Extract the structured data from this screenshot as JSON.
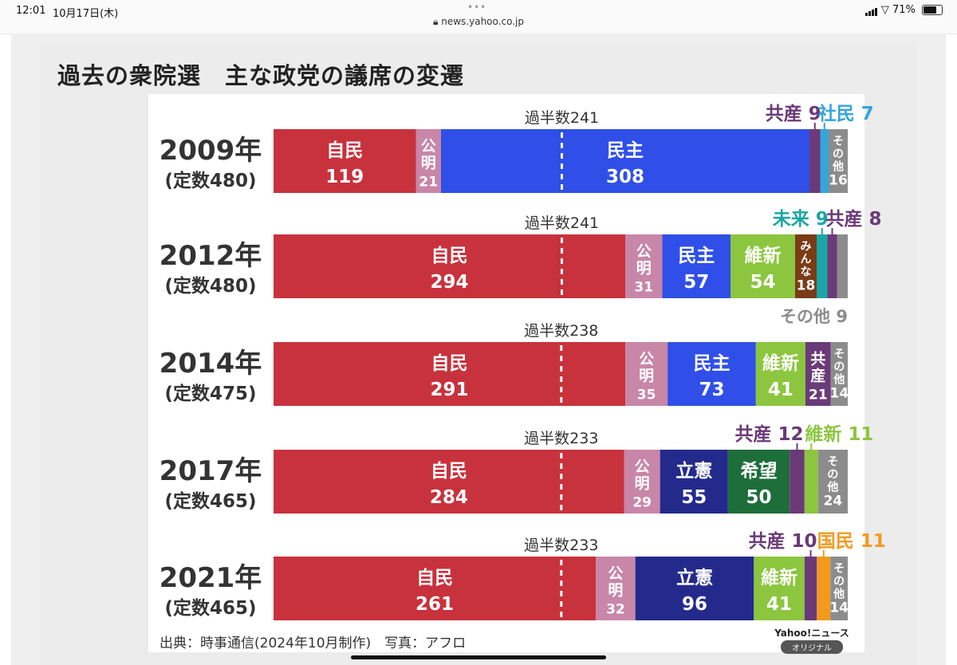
{
  "status_bar": {
    "time": "12:01",
    "date": "10月17日(木)",
    "url": "news.yahoo.co.jp",
    "battery": "71%"
  },
  "article": {
    "headline": "過去の衆院選　主な政党の議席の変遷",
    "source": "出典：時事通信(2024年10月制作)　写真：アフロ",
    "brand": "Yahoo!ニュース",
    "brand_sub": "オリジナル"
  },
  "chart_data": {
    "type": "bar",
    "title": "",
    "majority_label_prefix": "過半数",
    "rows": [
      {
        "year": "2009年",
        "quota": "(定数480)",
        "total": 480,
        "majority": 241,
        "segments": [
          {
            "party": "自民",
            "seats": 119,
            "color": "#c8323c",
            "text": "#ffffff",
            "label": "inside"
          },
          {
            "party": "公明",
            "seats": 21,
            "color": "#c886a8",
            "text": "#ffffff",
            "label": "vertical"
          },
          {
            "party": "民主",
            "seats": 308,
            "color": "#2f4fe8",
            "text": "#ffffff",
            "label": "inside"
          },
          {
            "party": "共産",
            "seats": 9,
            "color": "#6b3a78",
            "text": "#6b3a78",
            "label": "callout"
          },
          {
            "party": "社民",
            "seats": 7,
            "color": "#35a6da",
            "text": "#35a6da",
            "label": "callout"
          },
          {
            "party": "その他",
            "seats": 16,
            "color": "#8c8c8c",
            "text": "#ffffff",
            "label": "vertical"
          }
        ]
      },
      {
        "year": "2012年",
        "quota": "(定数480)",
        "total": 480,
        "majority": 241,
        "segments": [
          {
            "party": "自民",
            "seats": 294,
            "color": "#c8323c",
            "text": "#ffffff",
            "label": "inside"
          },
          {
            "party": "公明",
            "seats": 31,
            "color": "#c886a8",
            "text": "#ffffff",
            "label": "vertical"
          },
          {
            "party": "民主",
            "seats": 57,
            "color": "#2f4fe8",
            "text": "#ffffff",
            "label": "inside"
          },
          {
            "party": "維新",
            "seats": 54,
            "color": "#8cc63f",
            "text": "#ffffff",
            "label": "inside"
          },
          {
            "party": "みんな",
            "seats": 18,
            "color": "#7a3b16",
            "text": "#ffffff",
            "label": "vertical"
          },
          {
            "party": "未来",
            "seats": 9,
            "color": "#1aa6a6",
            "text": "#1aa6a6",
            "label": "callout"
          },
          {
            "party": "共産",
            "seats": 8,
            "color": "#6b3a78",
            "text": "#6b3a78",
            "label": "callout"
          },
          {
            "party": "その他",
            "seats": 9,
            "color": "#8c8c8c",
            "text": "#8c8c8c",
            "label": "below"
          }
        ]
      },
      {
        "year": "2014年",
        "quota": "(定数475)",
        "total": 475,
        "majority": 238,
        "segments": [
          {
            "party": "自民",
            "seats": 291,
            "color": "#c8323c",
            "text": "#ffffff",
            "label": "inside"
          },
          {
            "party": "公明",
            "seats": 35,
            "color": "#c886a8",
            "text": "#ffffff",
            "label": "vertical"
          },
          {
            "party": "民主",
            "seats": 73,
            "color": "#2f4fe8",
            "text": "#ffffff",
            "label": "inside"
          },
          {
            "party": "維新",
            "seats": 41,
            "color": "#8cc63f",
            "text": "#ffffff",
            "label": "inside"
          },
          {
            "party": "共産",
            "seats": 21,
            "color": "#6b3a78",
            "text": "#ffffff",
            "label": "vertical"
          },
          {
            "party": "その他",
            "seats": 14,
            "color": "#8c8c8c",
            "text": "#ffffff",
            "label": "vertical"
          }
        ]
      },
      {
        "year": "2017年",
        "quota": "(定数465)",
        "total": 465,
        "majority": 233,
        "segments": [
          {
            "party": "自民",
            "seats": 284,
            "color": "#c8323c",
            "text": "#ffffff",
            "label": "inside"
          },
          {
            "party": "公明",
            "seats": 29,
            "color": "#c886a8",
            "text": "#ffffff",
            "label": "vertical"
          },
          {
            "party": "立憲",
            "seats": 55,
            "color": "#232a8c",
            "text": "#ffffff",
            "label": "inside"
          },
          {
            "party": "希望",
            "seats": 50,
            "color": "#1d6e3a",
            "text": "#ffffff",
            "label": "inside"
          },
          {
            "party": "共産",
            "seats": 12,
            "color": "#6b3a78",
            "text": "#6b3a78",
            "label": "callout"
          },
          {
            "party": "維新",
            "seats": 11,
            "color": "#8cc63f",
            "text": "#8cc63f",
            "label": "callout"
          },
          {
            "party": "その他",
            "seats": 24,
            "color": "#8c8c8c",
            "text": "#ffffff",
            "label": "vertical"
          }
        ]
      },
      {
        "year": "2021年",
        "quota": "(定数465)",
        "total": 465,
        "majority": 233,
        "segments": [
          {
            "party": "自民",
            "seats": 261,
            "color": "#c8323c",
            "text": "#ffffff",
            "label": "inside"
          },
          {
            "party": "公明",
            "seats": 32,
            "color": "#c886a8",
            "text": "#ffffff",
            "label": "vertical"
          },
          {
            "party": "立憲",
            "seats": 96,
            "color": "#232a8c",
            "text": "#ffffff",
            "label": "inside"
          },
          {
            "party": "維新",
            "seats": 41,
            "color": "#8cc63f",
            "text": "#ffffff",
            "label": "inside"
          },
          {
            "party": "共産",
            "seats": 10,
            "color": "#6b3a78",
            "text": "#6b3a78",
            "label": "callout"
          },
          {
            "party": "国民",
            "seats": 11,
            "color": "#f39a1e",
            "text": "#f39a1e",
            "label": "callout"
          },
          {
            "party": "その他",
            "seats": 14,
            "color": "#8c8c8c",
            "text": "#ffffff",
            "label": "vertical"
          }
        ]
      }
    ]
  }
}
